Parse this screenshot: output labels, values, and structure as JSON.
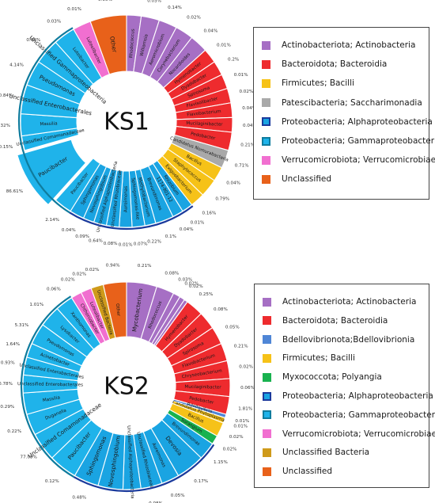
{
  "chart_data": [
    {
      "type": "sunburst",
      "title": "KS1",
      "value_unit": "%",
      "colors": {
        "Actinobacteriota; Actinobacteria": "#a66fc4",
        "Bacteroidota; Bacteroidia": "#ee2b2e",
        "Firmicutes; Bacilli": "#f6c218",
        "Patescibacteria; Saccharimonadia": "#a9a9a9",
        "Proteobacteria; Alphaproteobacteria": "#1aa4e2",
        "Proteobacteria; Gammaproteobacteria": "#1fb3ea",
        "Verrucomicrobiota; Verrucomicrobiae": "#f16fd0",
        "Unclassified": "#e8611a"
      },
      "legend": [
        {
          "label": "Actinobacteriota; Actinobacteria",
          "color": "#a66fc4"
        },
        {
          "label": "Bacteroidota; Bacteroidia",
          "color": "#ee2b2e"
        },
        {
          "label": "Firmicutes; Bacilli",
          "color": "#f6c218"
        },
        {
          "label": "Patescibacteria; Saccharimonadia",
          "color": "#a9a9a9"
        },
        {
          "label": "Proteobacteria; Alphaproteobacteria",
          "color": "#1aa4e2",
          "border": "#1a3a9c"
        },
        {
          "label": "Proteobacteria; Gammaproteobacteria",
          "color": "#1fb3ea",
          "border": "#0f7c9e"
        },
        {
          "label": "Verrucomicrobiota; Verrucomicrobiae",
          "color": "#f16fd0"
        },
        {
          "label": "Unclassified",
          "color": "#e8611a"
        }
      ],
      "segments": [
        {
          "genus": "Rhodococcus",
          "group": "Actinobacteriota; Actinobacteria",
          "value": "0.03%"
        },
        {
          "genus": "Williamsia",
          "group": "Actinobacteriota; Actinobacteria",
          "value": "0.03%"
        },
        {
          "genus": "Aeromicrobium",
          "group": "Actinobacteriota; Actinobacteria",
          "value": "0.14%"
        },
        {
          "genus": "Corynebacterium",
          "group": "Actinobacteriota; Actinobacteria",
          "value": "0.02%"
        },
        {
          "genus": "Nocardioides",
          "group": "Actinobacteriota; Actinobacteria",
          "value": "0.04%"
        },
        {
          "genus": "Hymenobacter",
          "group": "Bacteroidota; Bacteroidia",
          "value": "0.01%"
        },
        {
          "genus": "Dyadobacter",
          "group": "Bacteroidota; Bacteroidia",
          "value": "0.2%"
        },
        {
          "genus": "Spirosoma",
          "group": "Bacteroidota; Bacteroidia",
          "value": "0.01%"
        },
        {
          "genus": "Flavisolibacter",
          "group": "Bacteroidota; Bacteroidia",
          "value": "0.02%"
        },
        {
          "genus": "Flavobacterium",
          "group": "Bacteroidota; Bacteroidia",
          "value": "0.04%"
        },
        {
          "genus": "Mucilaginibacter",
          "group": "Bacteroidota; Bacteroidia",
          "value": "0.04%"
        },
        {
          "genus": "Pedobacter",
          "group": "Bacteroidota; Bacteroidia",
          "value": "0.21%"
        },
        {
          "genus": "Candidatus Nomurabacteria",
          "group": "Patescibacteria; Saccharimonadia",
          "value": "0.71%"
        },
        {
          "genus": "Bacillus",
          "group": "Firmicutes; Bacilli",
          "value": "0.04%"
        },
        {
          "genus": "Staphylococcus",
          "group": "Firmicutes; Bacilli",
          "value": "0.79%"
        },
        {
          "genus": "Exiguobacterium",
          "group": "Firmicutes; Bacilli",
          "value": "0.16%"
        },
        {
          "genus": "Rhizobium",
          "group": "Proteobacteria; Alphaproteobacteria",
          "value": "0.01%"
        },
        {
          "genus": "1174-901-12",
          "group": "Proteobacteria; Alphaproteobacteria",
          "value": "0.04%"
        },
        {
          "genus": "Brevundimonas",
          "group": "Proteobacteria; Alphaproteobacteria",
          "value": "0.1%"
        },
        {
          "genus": "Methylobacterium",
          "group": "Proteobacteria; Alphaproteobacteria",
          "value": "0.22%"
        },
        {
          "genus": "Sphingomonas-like",
          "group": "Proteobacteria; Alphaproteobacteria",
          "value": "0.07%"
        },
        {
          "genus": "Aureimonas",
          "group": "Proteobacteria; Alphaproteobacteria",
          "value": "0.01%"
        },
        {
          "genus": "Unclassified Rhizobiaceae",
          "group": "Proteobacteria; Alphaproteobacteria",
          "value": "0.08%"
        },
        {
          "genus": "Unclassified Alphaproteobacteria",
          "group": "Proteobacteria; Alphaproteobacteria",
          "value": "0.64%"
        },
        {
          "genus": "Novosphingobium",
          "group": "Proteobacteria; Alphaproteobacteria",
          "value": "0.09%"
        },
        {
          "genus": "Sphingomonas",
          "group": "Proteobacteria; Alphaproteobacteria",
          "value": "0.04%"
        },
        {
          "genus": "Paucibacter",
          "group": "Proteobacteria; Gammaproteobacteria",
          "value": "2.14%"
        },
        {
          "genus": "Paucibacter",
          "group": "Proteobacteria; Gammaproteobacteria",
          "value": "86.61%"
        },
        {
          "genus": "Unclassified Comamonadaceae",
          "group": "Proteobacteria; Gammaproteobacteria",
          "value": "0.15%"
        },
        {
          "genus": "Massilia",
          "group": "Proteobacteria; Gammaproteobacteria",
          "value": "0.32%"
        },
        {
          "genus": "Unclassified Enterobacterales",
          "group": "Proteobacteria; Gammaproteobacteria",
          "value": "0.84%"
        },
        {
          "genus": "Pseudomonas",
          "group": "Proteobacteria; Gammaproteobacteria",
          "value": "4.14%"
        },
        {
          "genus": "Unclassified Gammaproteobacteria",
          "group": "Proteobacteria; Gammaproteobacteria",
          "value": "0.98%"
        },
        {
          "genus": "Luteibacter",
          "group": "Proteobacteria; Gammaproteobacteria",
          "value": "0.03%"
        },
        {
          "genus": "Luteolibacter",
          "group": "Verrucomicrobiota; Verrucomicrobiae",
          "value": "0.01%"
        },
        {
          "genus": "Other",
          "group": "Unclassified",
          "value": "0.96%"
        }
      ]
    },
    {
      "type": "sunburst",
      "title": "KS2",
      "value_unit": "%",
      "colors": {
        "Actinobacteriota; Actinobacteria": "#a66fc4",
        "Bacteroidota; Bacteroidia": "#ee2b2e",
        "Bdellovibrionota; Bdellovibrionia": "#4f86d6",
        "Firmicutes; Bacilli": "#f6c218",
        "Myxococcota; Polyangia": "#19b24f",
        "Proteobacteria; Alphaproteobacteria": "#1aa4e2",
        "Proteobacteria; Gammaproteobacteria": "#1fb3ea",
        "Verrucomicrobiota; Verrucomicrobiae": "#f16fd0",
        "Unclassified Bacteria": "#cf9a1a",
        "Unclassified": "#e8611a"
      },
      "legend": [
        {
          "label": "Actinobacteriota; Actinobacteria",
          "color": "#a66fc4"
        },
        {
          "label": "Bacteroidota; Bacteroidia",
          "color": "#ee2b2e"
        },
        {
          "label": "Bdellovibrionota;Bdellovibrionia",
          "color": "#4f86d6"
        },
        {
          "label": "Firmicutes; Bacilli",
          "color": "#f6c218"
        },
        {
          "label": "Myxococcota; Polyangia",
          "color": "#19b24f"
        },
        {
          "label": "Proteobacteria; Alphaproteobacteria",
          "color": "#1aa4e2",
          "border": "#1a3a9c"
        },
        {
          "label": "Proteobacteria; Gammaproteobacteria",
          "color": "#1fb3ea",
          "border": "#0f7c9e"
        },
        {
          "label": "Verrucomicrobiota; Verrucomicrobiae",
          "color": "#f16fd0"
        },
        {
          "label": "Unclassified Bacteria",
          "color": "#cf9a1a"
        },
        {
          "label": "Unclassified",
          "color": "#e8611a"
        }
      ],
      "segments": [
        {
          "genus": "Mycobacterium",
          "group": "Actinobacteriota; Actinobacteria",
          "value": "0.21%"
        },
        {
          "genus": "Rhodococcus",
          "group": "Actinobacteriota; Actinobacteria",
          "value": "0.08%"
        },
        {
          "genus": "",
          "group": "Actinobacteriota; Actinobacteria",
          "value": "0.03%"
        },
        {
          "genus": "",
          "group": "Actinobacteriota; Actinobacteria",
          "value": "0.02%"
        },
        {
          "genus": "",
          "group": "Actinobacteriota; Actinobacteria",
          "value": "0.02%"
        },
        {
          "genus": "Hymenobacter",
          "group": "Bacteroidota; Bacteroidia",
          "value": "0.25%"
        },
        {
          "genus": "Dyadobacter",
          "group": "Bacteroidota; Bacteroidia",
          "value": "0.08%"
        },
        {
          "genus": "Spirosoma",
          "group": "Bacteroidota; Bacteroidia",
          "value": "0.05%"
        },
        {
          "genus": "Flavobacterium",
          "group": "Bacteroidota; Bacteroidia",
          "value": "0.21%"
        },
        {
          "genus": "Chryseobacterium",
          "group": "Bacteroidota; Bacteroidia",
          "value": "0.02%"
        },
        {
          "genus": "Mucilaginibacter",
          "group": "Bacteroidota; Bacteroidia",
          "value": "0.06%"
        },
        {
          "genus": "Pedobacter",
          "group": "Bacteroidota; Bacteroidia",
          "value": "1.81%"
        },
        {
          "genus": "Bdellovibrio",
          "group": "Bdellovibrionota; Bdellovibrionia",
          "value": "0.01%"
        },
        {
          "genus": "Candidatus Phytoplasma",
          "group": "Firmicutes; Bacilli",
          "value": "0.01%"
        },
        {
          "genus": "Bacillus",
          "group": "Firmicutes; Bacilli",
          "value": "0.02%"
        },
        {
          "genus": "Sorangium",
          "group": "Myxococcota; Polyangia",
          "value": "0.02%"
        },
        {
          "genus": "Brevundimonas",
          "group": "Proteobacteria; Alphaproteobacteria",
          "value": "1.15%"
        },
        {
          "genus": "Devosia",
          "group": "Proteobacteria; Alphaproteobacteria",
          "value": "0.17%"
        },
        {
          "genus": "Aureimonas",
          "group": "Proteobacteria; Alphaproteobacteria",
          "value": "0.05%"
        },
        {
          "genus": "Unclassified Rhizobiaceae",
          "group": "Proteobacteria; Alphaproteobacteria",
          "value": "0.08%"
        },
        {
          "genus": "Unclassified Alphaproteobacteria",
          "group": "Proteobacteria; Alphaproteobacteria",
          "value": "0.12%"
        },
        {
          "genus": "Novosphingobium",
          "group": "Proteobacteria; Alphaproteobacteria",
          "value": "0.11%"
        },
        {
          "genus": "Sphingomonas",
          "group": "Proteobacteria; Alphaproteobacteria",
          "value": "0.48%"
        },
        {
          "genus": "Paucibacter",
          "group": "Proteobacteria; Gammaproteobacteria",
          "value": "0.12%"
        },
        {
          "genus": "Unclassified Comamonadaceae",
          "group": "Proteobacteria; Gammaproteobacteria",
          "value": "77.09%"
        },
        {
          "genus": "Duganella",
          "group": "Proteobacteria; Gammaproteobacteria",
          "value": "0.22%"
        },
        {
          "genus": "Massilia",
          "group": "Proteobacteria; Gammaproteobacteria",
          "value": "0.29%"
        },
        {
          "genus": "Unclassified Enterobacterales",
          "group": "Proteobacteria; Gammaproteobacteria",
          "value": "0.78%"
        },
        {
          "genus": "Unclassified Enterobacterales",
          "group": "Proteobacteria; Gammaproteobacteria",
          "value": "0.93%"
        },
        {
          "genus": "Acinetobacter",
          "group": "Proteobacteria; Gammaproteobacteria",
          "value": "1.64%"
        },
        {
          "genus": "Pseudomonas",
          "group": "Proteobacteria; Gammaproteobacteria",
          "value": "5.31%"
        },
        {
          "genus": "Lysobacter",
          "group": "Proteobacteria; Gammaproteobacteria",
          "value": "1.01%"
        },
        {
          "genus": "Xanthomonas",
          "group": "Proteobacteria; Gammaproteobacteria",
          "value": "0.06%"
        },
        {
          "genus": "Chthoniobacter",
          "group": "Verrucomicrobiota; Verrucomicrobiae",
          "value": "0.02%"
        },
        {
          "genus": "Luteolibacter",
          "group": "Verrucomicrobiota; Verrucomicrobiae",
          "value": "0.02%"
        },
        {
          "genus": "Unclassified Bacteria",
          "group": "Unclassified Bacteria",
          "value": "0.02%"
        },
        {
          "genus": "Other",
          "group": "Unclassified",
          "value": "0.94%"
        }
      ]
    }
  ]
}
